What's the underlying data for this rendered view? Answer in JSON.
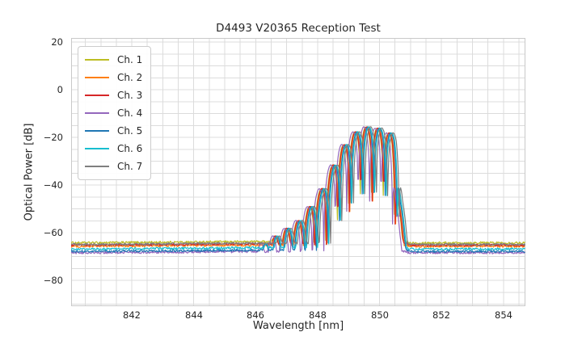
{
  "chart_data": {
    "type": "line",
    "title": "D4493 V20365 Reception Test",
    "xlabel": "Wavelength [nm]",
    "ylabel": "Optical Power [dB]",
    "xlim": [
      840.04,
      854.71
    ],
    "ylim": [
      -90.8,
      21.7
    ],
    "xticks": [
      842,
      844,
      846,
      848,
      850,
      852,
      854
    ],
    "xtick_labels": [
      "842",
      "844",
      "846",
      "848",
      "850",
      "852",
      "854"
    ],
    "yticks": [
      20,
      0,
      -20,
      -40,
      -60,
      -80
    ],
    "ytick_labels": [
      "20",
      "0",
      "−20",
      "−40",
      "−60",
      "−80"
    ],
    "grid": "on",
    "grid_minor_x_nm": 0.5,
    "grid_minor_y_db": 5,
    "grid_color": "#dcdcdc",
    "frame_color": "#c9c9c9",
    "legend_position": "upper left",
    "band_nm": [
      846.8,
      850.6
    ],
    "peak_db": -15.5,
    "noise_floor_db_range": [
      -68.5,
      -64.2
    ],
    "series": [
      {
        "name": "Ch. 1",
        "color": "#bcbd22",
        "floor_db": -64.2,
        "offset_nm": -0.055
      },
      {
        "name": "Ch. 2",
        "color": "#ff7f0e",
        "floor_db": -65.7,
        "offset_nm": -0.02
      },
      {
        "name": "Ch. 3",
        "color": "#d62728",
        "floor_db": -65.2,
        "offset_nm": -0.04
      },
      {
        "name": "Ch. 4",
        "color": "#9467bd",
        "floor_db": -68.4,
        "offset_nm": -0.12
      },
      {
        "name": "Ch. 5",
        "color": "#1f77b4",
        "floor_db": -67.8,
        "offset_nm": 0.015
      },
      {
        "name": "Ch. 6",
        "color": "#17becf",
        "floor_db": -66.8,
        "offset_nm": 0.045
      },
      {
        "name": "Ch. 7",
        "color": "#7f7f7f",
        "floor_db": -64.9,
        "offset_nm": 0.095
      }
    ],
    "model": {
      "period_nm": 0.37,
      "phase_nm": 846.84,
      "notch_min": 0.028,
      "noise_floor_db": 0.45,
      "noise_band_db": 0.12,
      "sample_step_nm": 0.02,
      "envelope": [
        [
          840.0,
          -72
        ],
        [
          846.0,
          -67
        ],
        [
          846.35,
          -64
        ],
        [
          846.7,
          -61
        ],
        [
          847.05,
          -58
        ],
        [
          847.4,
          -55
        ],
        [
          847.75,
          -49.5
        ],
        [
          848.1,
          -43
        ],
        [
          848.45,
          -33.5
        ],
        [
          848.8,
          -24.5
        ],
        [
          849.15,
          -18.5
        ],
        [
          849.5,
          -15.6
        ],
        [
          849.85,
          -15.6
        ],
        [
          850.15,
          -16.8
        ],
        [
          850.45,
          -18.8
        ],
        [
          850.55,
          -26
        ],
        [
          850.65,
          -45
        ],
        [
          850.78,
          -60
        ],
        [
          850.95,
          -69
        ],
        [
          851.15,
          -72
        ],
        [
          855.0,
          -72
        ]
      ]
    }
  }
}
